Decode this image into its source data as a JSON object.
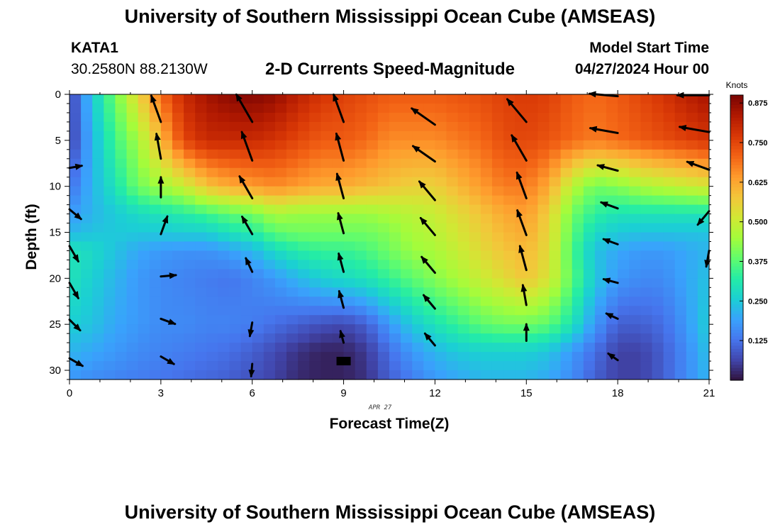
{
  "header": {
    "title": "University of Southern Mississippi Ocean Cube (AMSEAS)",
    "station_id": "KATA1",
    "coords": "30.2580N  88.2130W",
    "chart_title": "2-D Currents Speed-Magnitude",
    "model_label": "Model Start Time",
    "model_time": "04/27/2024 Hour 00"
  },
  "footer": {
    "title": "University of Southern Mississippi Ocean Cube (AMSEAS)"
  },
  "colors": {
    "background": "#ffffff",
    "arrow": "#000000",
    "scale": [
      "#30123b",
      "#4145ab",
      "#4675ed",
      "#39a2fc",
      "#1bcfd4",
      "#24eca6",
      "#61fc6c",
      "#a4fc3b",
      "#d1e834",
      "#f3c63a",
      "#fe9b2d",
      "#f36315",
      "#d93806",
      "#b11901",
      "#7a0402"
    ]
  },
  "chart_data": {
    "type": "heatmap",
    "title": "2-D Currents Speed-Magnitude",
    "xlabel": "Forecast Time(Z)",
    "ylabel": "Depth (ft)",
    "date_label": "APR 27",
    "xlim": [
      0,
      21
    ],
    "ylim": [
      31,
      0
    ],
    "x_ticks": [
      0,
      3,
      6,
      9,
      12,
      15,
      18,
      21
    ],
    "y_ticks": [
      0,
      5,
      10,
      15,
      20,
      25,
      30
    ],
    "colorbar": {
      "unit": "Knots",
      "range": [
        0.0,
        0.9
      ],
      "ticks": [
        "0.125",
        "0.250",
        "0.375",
        "0.500",
        "0.625",
        "0.750",
        "0.875"
      ],
      "tick_values": [
        0.125,
        0.25,
        0.375,
        0.5,
        0.625,
        0.75,
        0.875
      ]
    },
    "speed_grid": {
      "x": [
        0,
        0.75,
        1.5,
        2.25,
        3,
        3.75,
        4.5,
        5.25,
        6,
        6.75,
        7.5,
        8.25,
        9,
        9.75,
        10.5,
        11.25,
        12,
        12.75,
        13.5,
        14.25,
        15,
        15.75,
        16.5,
        17.25,
        18,
        18.75,
        19.5,
        20.25,
        21
      ],
      "depths": [
        0,
        5,
        10,
        13,
        15,
        17,
        20,
        25,
        28,
        31
      ],
      "values": [
        [
          0.05,
          0.25,
          0.4,
          0.55,
          0.7,
          0.8,
          0.85,
          0.88,
          0.89,
          0.87,
          0.82,
          0.78,
          0.76,
          0.74,
          0.72,
          0.72,
          0.72,
          0.73,
          0.74,
          0.76,
          0.77,
          0.76,
          0.72,
          0.7,
          0.72,
          0.75,
          0.78,
          0.82,
          0.85
        ],
        [
          0.05,
          0.22,
          0.35,
          0.45,
          0.6,
          0.75,
          0.8,
          0.8,
          0.8,
          0.78,
          0.75,
          0.72,
          0.72,
          0.7,
          0.66,
          0.66,
          0.66,
          0.68,
          0.7,
          0.74,
          0.75,
          0.73,
          0.7,
          0.68,
          0.7,
          0.72,
          0.74,
          0.76,
          0.78
        ],
        [
          0.12,
          0.22,
          0.3,
          0.4,
          0.45,
          0.5,
          0.58,
          0.62,
          0.64,
          0.66,
          0.64,
          0.62,
          0.62,
          0.6,
          0.58,
          0.56,
          0.56,
          0.6,
          0.64,
          0.68,
          0.68,
          0.62,
          0.48,
          0.4,
          0.42,
          0.46,
          0.48,
          0.5,
          0.52
        ],
        [
          0.18,
          0.22,
          0.25,
          0.28,
          0.3,
          0.32,
          0.35,
          0.38,
          0.4,
          0.46,
          0.44,
          0.44,
          0.44,
          0.44,
          0.46,
          0.48,
          0.5,
          0.54,
          0.58,
          0.62,
          0.64,
          0.56,
          0.4,
          0.33,
          0.3,
          0.3,
          0.3,
          0.3,
          0.3
        ],
        [
          0.22,
          0.24,
          0.25,
          0.25,
          0.25,
          0.26,
          0.26,
          0.3,
          0.32,
          0.38,
          0.4,
          0.4,
          0.4,
          0.4,
          0.42,
          0.46,
          0.48,
          0.52,
          0.56,
          0.6,
          0.62,
          0.55,
          0.38,
          0.28,
          0.25,
          0.24,
          0.24,
          0.24,
          0.24
        ],
        [
          0.3,
          0.28,
          0.24,
          0.2,
          0.18,
          0.17,
          0.17,
          0.19,
          0.22,
          0.28,
          0.32,
          0.34,
          0.34,
          0.36,
          0.4,
          0.44,
          0.46,
          0.5,
          0.54,
          0.58,
          0.6,
          0.54,
          0.36,
          0.24,
          0.2,
          0.18,
          0.18,
          0.2,
          0.22
        ],
        [
          0.3,
          0.26,
          0.22,
          0.18,
          0.16,
          0.15,
          0.14,
          0.13,
          0.15,
          0.18,
          0.22,
          0.26,
          0.28,
          0.3,
          0.34,
          0.38,
          0.42,
          0.46,
          0.5,
          0.54,
          0.58,
          0.52,
          0.38,
          0.25,
          0.18,
          0.16,
          0.16,
          0.2,
          0.24
        ],
        [
          0.26,
          0.24,
          0.2,
          0.18,
          0.16,
          0.16,
          0.15,
          0.15,
          0.14,
          0.12,
          0.1,
          0.08,
          0.07,
          0.1,
          0.18,
          0.25,
          0.3,
          0.34,
          0.38,
          0.4,
          0.4,
          0.38,
          0.3,
          0.18,
          0.1,
          0.1,
          0.12,
          0.18,
          0.26
        ],
        [
          0.22,
          0.2,
          0.18,
          0.16,
          0.15,
          0.14,
          0.13,
          0.12,
          0.1,
          0.07,
          0.04,
          0.02,
          0.02,
          0.05,
          0.12,
          0.18,
          0.22,
          0.25,
          0.26,
          0.26,
          0.26,
          0.24,
          0.18,
          0.12,
          0.06,
          0.06,
          0.1,
          0.16,
          0.24
        ],
        [
          0.18,
          0.16,
          0.15,
          0.14,
          0.13,
          0.12,
          0.11,
          0.1,
          0.08,
          0.06,
          0.03,
          0.02,
          0.02,
          0.04,
          0.1,
          0.14,
          0.18,
          0.2,
          0.22,
          0.22,
          0.22,
          0.2,
          0.16,
          0.1,
          0.06,
          0.06,
          0.1,
          0.16,
          0.22
        ]
      ]
    },
    "vectors": {
      "note": "direction in compass degrees (toward), magnitude in knots",
      "items": [
        {
          "x": 0,
          "depth": 8,
          "dir": 80,
          "mag": 0.1
        },
        {
          "x": 0,
          "depth": 12.5,
          "dir": 130,
          "mag": 0.2
        },
        {
          "x": 0,
          "depth": 16.5,
          "dir": 150,
          "mag": 0.3
        },
        {
          "x": 0,
          "depth": 20.5,
          "dir": 150,
          "mag": 0.3
        },
        {
          "x": 0,
          "depth": 24.5,
          "dir": 135,
          "mag": 0.2
        },
        {
          "x": 0,
          "depth": 28.7,
          "dir": 120,
          "mag": 0.2
        },
        {
          "x": 3,
          "depth": 3.0,
          "dir": 340,
          "mag": 0.7
        },
        {
          "x": 3,
          "depth": 7.0,
          "dir": 350,
          "mag": 0.6
        },
        {
          "x": 3,
          "depth": 11.2,
          "dir": 0,
          "mag": 0.4
        },
        {
          "x": 3,
          "depth": 15.2,
          "dir": 20,
          "mag": 0.35
        },
        {
          "x": 3,
          "depth": 19.8,
          "dir": 85,
          "mag": 0.2
        },
        {
          "x": 3,
          "depth": 24.4,
          "dir": 110,
          "mag": 0.2
        },
        {
          "x": 3,
          "depth": 28.5,
          "dir": 120,
          "mag": 0.2
        },
        {
          "x": 6,
          "depth": 3.0,
          "dir": 330,
          "mag": 0.85
        },
        {
          "x": 6,
          "depth": 7.2,
          "dir": 340,
          "mag": 0.8
        },
        {
          "x": 6,
          "depth": 11.3,
          "dir": 330,
          "mag": 0.6
        },
        {
          "x": 6,
          "depth": 15.2,
          "dir": 330,
          "mag": 0.4
        },
        {
          "x": 6,
          "depth": 19.3,
          "dir": 335,
          "mag": 0.2
        },
        {
          "x": 6,
          "depth": 24.8,
          "dir": 190,
          "mag": 0.15
        },
        {
          "x": 6,
          "depth": 29.3,
          "dir": 185,
          "mag": 0.1
        },
        {
          "x": 9,
          "depth": 3.0,
          "dir": 340,
          "mag": 0.75
        },
        {
          "x": 9,
          "depth": 7.2,
          "dir": 345,
          "mag": 0.7
        },
        {
          "x": 9,
          "depth": 11.3,
          "dir": 345,
          "mag": 0.6
        },
        {
          "x": 9,
          "depth": 15.1,
          "dir": 345,
          "mag": 0.42
        },
        {
          "x": 9,
          "depth": 19.3,
          "dir": 345,
          "mag": 0.35
        },
        {
          "x": 9,
          "depth": 23.2,
          "dir": 345,
          "mag": 0.28
        },
        {
          "x": 9,
          "depth": 27.0,
          "dir": 345,
          "mag": 0.08
        },
        {
          "x": 12,
          "depth": 3.3,
          "dir": 305,
          "mag": 0.72
        },
        {
          "x": 12,
          "depth": 7.3,
          "dir": 305,
          "mag": 0.66
        },
        {
          "x": 12,
          "depth": 11.5,
          "dir": 320,
          "mag": 0.56
        },
        {
          "x": 12,
          "depth": 15.3,
          "dir": 320,
          "mag": 0.48
        },
        {
          "x": 12,
          "depth": 19.4,
          "dir": 320,
          "mag": 0.42
        },
        {
          "x": 12,
          "depth": 23.3,
          "dir": 320,
          "mag": 0.3
        },
        {
          "x": 12,
          "depth": 27.3,
          "dir": 320,
          "mag": 0.22
        },
        {
          "x": 15,
          "depth": 3.0,
          "dir": 320,
          "mag": 0.77
        },
        {
          "x": 15,
          "depth": 7.2,
          "dir": 330,
          "mag": 0.75
        },
        {
          "x": 15,
          "depth": 11.3,
          "dir": 340,
          "mag": 0.68
        },
        {
          "x": 15,
          "depth": 15.3,
          "dir": 340,
          "mag": 0.64
        },
        {
          "x": 15,
          "depth": 19.1,
          "dir": 345,
          "mag": 0.58
        },
        {
          "x": 15,
          "depth": 22.9,
          "dir": 350,
          "mag": 0.4
        },
        {
          "x": 15,
          "depth": 26.8,
          "dir": 0,
          "mag": 0.26
        },
        {
          "x": 18,
          "depth": 0.2,
          "dir": 275,
          "mag": 0.72
        },
        {
          "x": 18,
          "depth": 4.2,
          "dir": 280,
          "mag": 0.7
        },
        {
          "x": 18,
          "depth": 8.3,
          "dir": 285,
          "mag": 0.42
        },
        {
          "x": 18,
          "depth": 12.4,
          "dir": 290,
          "mag": 0.3
        },
        {
          "x": 18,
          "depth": 16.3,
          "dir": 290,
          "mag": 0.2
        },
        {
          "x": 18,
          "depth": 20.5,
          "dir": 285,
          "mag": 0.18
        },
        {
          "x": 18,
          "depth": 24.4,
          "dir": 295,
          "mag": 0.1
        },
        {
          "x": 18,
          "depth": 28.9,
          "dir": 305,
          "mag": 0.06
        },
        {
          "x": 21,
          "depth": 0.1,
          "dir": 270,
          "mag": 0.85
        },
        {
          "x": 21,
          "depth": 4.1,
          "dir": 280,
          "mag": 0.78
        },
        {
          "x": 21,
          "depth": 8.2,
          "dir": 290,
          "mag": 0.52
        },
        {
          "x": 21,
          "depth": 12.7,
          "dir": 220,
          "mag": 0.3
        },
        {
          "x": 21,
          "depth": 17.0,
          "dir": 190,
          "mag": 0.24
        }
      ]
    },
    "marker": {
      "x": 9,
      "depth": 29,
      "label": "current-time-marker"
    }
  }
}
